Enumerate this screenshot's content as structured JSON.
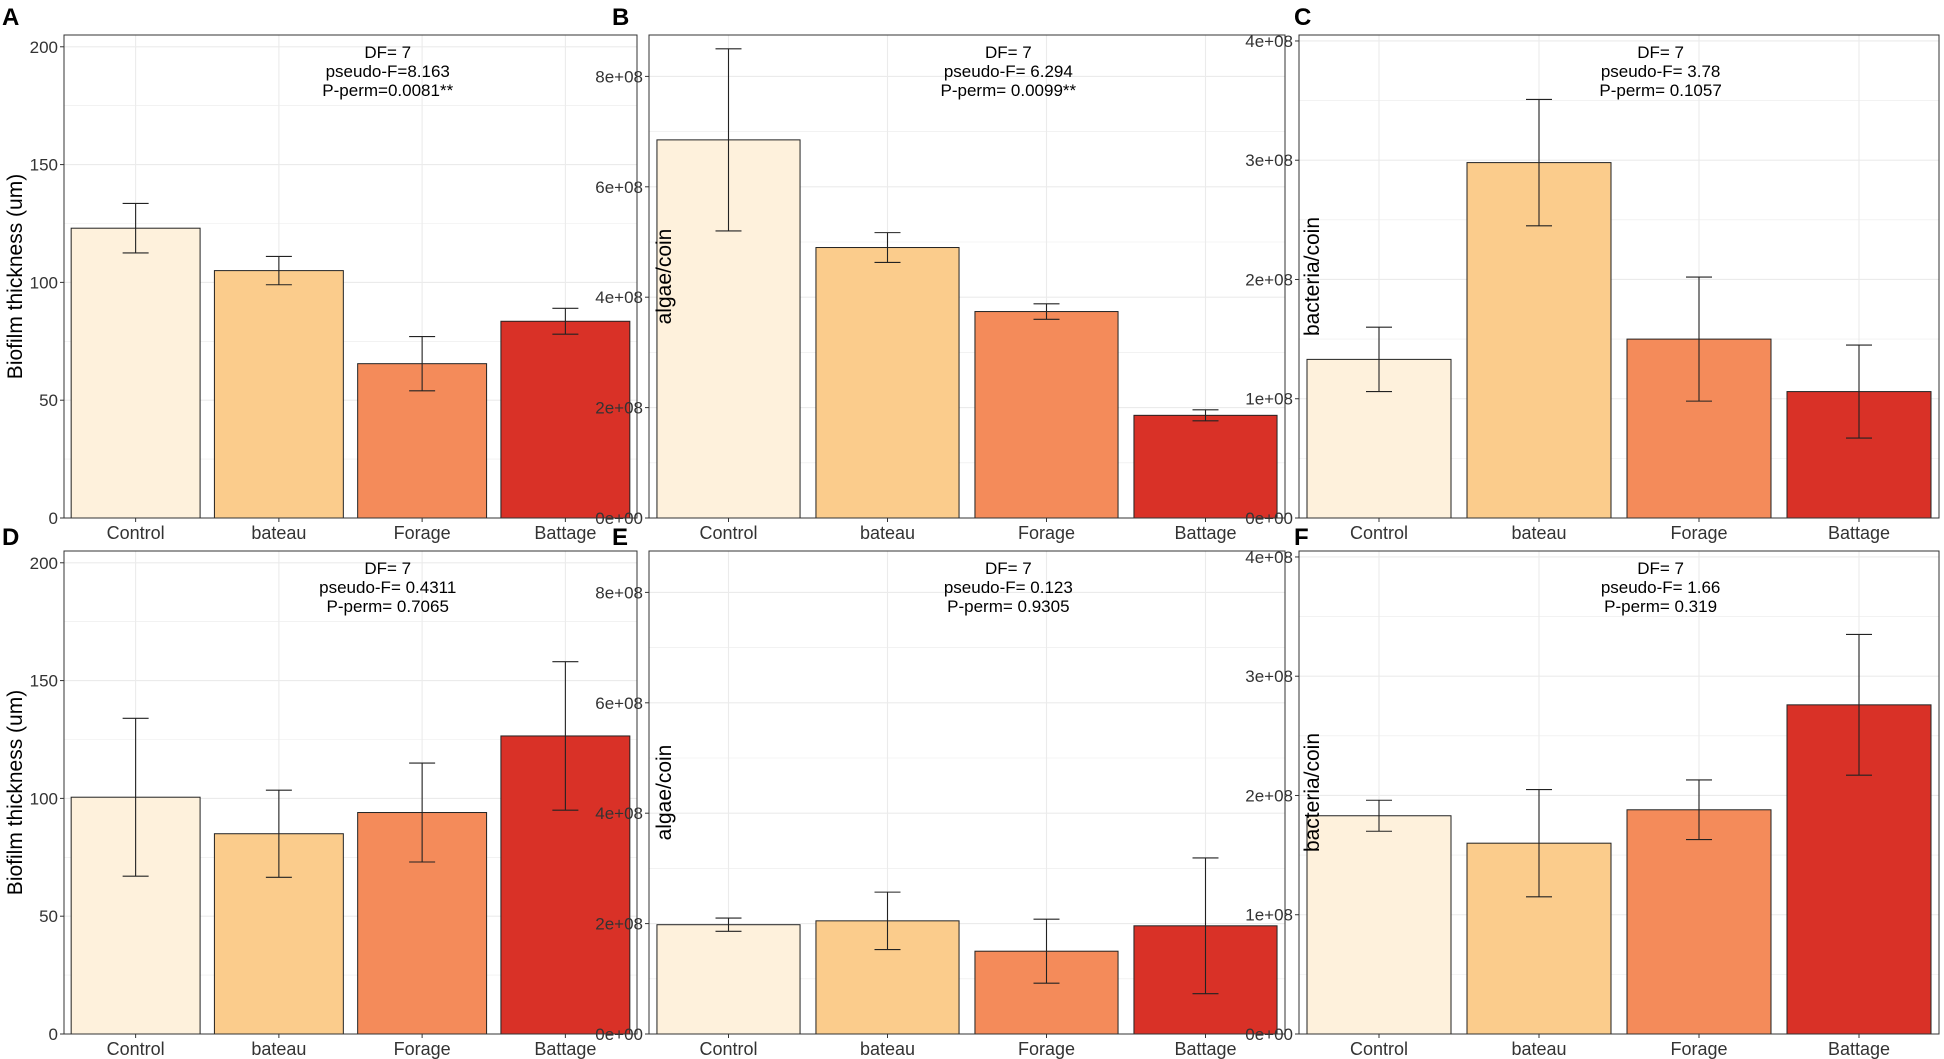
{
  "colors": {
    "control": "#FEF1DC",
    "bateau": "#FBCC8C",
    "forage": "#F48B5A",
    "battage": "#D93127",
    "bar_stroke": "#222222",
    "grid": "#EBEBEB",
    "panel_border": "#333333",
    "text": "#000000",
    "tick_text": "#333333"
  },
  "chart_data": [
    {
      "panel": "A",
      "type": "bar",
      "ylabel": "Biofilm thickness (um)",
      "categories": [
        "Control",
        "bateau",
        "Forage",
        "Battage"
      ],
      "values": [
        123,
        105,
        65.5,
        83.5
      ],
      "errors": [
        10.5,
        6,
        11.5,
        5.5
      ],
      "ylim": [
        0,
        205
      ],
      "yticks": [
        0,
        50,
        100,
        150,
        200
      ],
      "ytick_labels": [
        "0",
        "50",
        "100",
        "150",
        "200"
      ],
      "annotation": [
        "DF= 7",
        "pseudo-F=8.163",
        "P-perm=0.0081**"
      ]
    },
    {
      "panel": "B",
      "type": "bar",
      "ylabel": "algae/coin",
      "categories": [
        "Control",
        "bateau",
        "Forage",
        "Battage"
      ],
      "values": [
        685000000,
        490000000,
        374000000,
        186000000
      ],
      "errors": [
        165000000,
        27000000,
        14000000,
        10000000
      ],
      "ylim": [
        0,
        875000000
      ],
      "yticks": [
        0,
        200000000,
        400000000,
        600000000,
        800000000
      ],
      "ytick_labels": [
        "0e+00",
        "2e+08",
        "4e+08",
        "6e+08",
        "8e+08"
      ],
      "annotation": [
        "DF= 7",
        "pseudo-F= 6.294",
        "P-perm= 0.0099**"
      ]
    },
    {
      "panel": "C",
      "type": "bar",
      "ylabel": "bacteria/coin",
      "categories": [
        "Control",
        "bateau",
        "Forage",
        "Battage"
      ],
      "values": [
        133000000,
        298000000,
        150000000,
        106000000
      ],
      "errors": [
        27000000,
        53000000,
        52000000,
        39000000
      ],
      "ylim": [
        0,
        405000000
      ],
      "yticks": [
        0,
        100000000,
        200000000,
        300000000,
        400000000
      ],
      "ytick_labels": [
        "0e+00",
        "1e+08",
        "2e+08",
        "3e+08",
        "4e+08"
      ],
      "annotation": [
        "DF= 7",
        "pseudo-F= 3.78",
        "P-perm= 0.1057"
      ]
    },
    {
      "panel": "D",
      "type": "bar",
      "ylabel": "Biofilm thickness (um)",
      "categories": [
        "Control",
        "bateau",
        "Forage",
        "Battage"
      ],
      "values": [
        100.5,
        85,
        94,
        126.5
      ],
      "errors": [
        33.5,
        18.5,
        21,
        31.5
      ],
      "ylim": [
        0,
        205
      ],
      "yticks": [
        0,
        50,
        100,
        150,
        200
      ],
      "ytick_labels": [
        "0",
        "50",
        "100",
        "150",
        "200"
      ],
      "annotation": [
        "DF= 7",
        "pseudo-F= 0.4311",
        "P-perm= 0.7065"
      ]
    },
    {
      "panel": "E",
      "type": "bar",
      "ylabel": "algae/coin",
      "categories": [
        "Control",
        "bateau",
        "Forage",
        "Battage"
      ],
      "values": [
        198000000,
        205000000,
        150000000,
        196000000
      ],
      "errors": [
        12000000,
        52000000,
        58000000,
        123000000
      ],
      "ylim": [
        0,
        875000000
      ],
      "yticks": [
        0,
        200000000,
        400000000,
        600000000,
        800000000
      ],
      "ytick_labels": [
        "0e+00",
        "2e+08",
        "4e+08",
        "6e+08",
        "8e+08"
      ],
      "annotation": [
        "DF= 7",
        "pseudo-F= 0.123",
        "P-perm= 0.9305"
      ]
    },
    {
      "panel": "F",
      "type": "bar",
      "ylabel": "bacteria/coin",
      "categories": [
        "Control",
        "bateau",
        "Forage",
        "Battage"
      ],
      "values": [
        183000000,
        160000000,
        188000000,
        276000000
      ],
      "errors": [
        13000000,
        45000000,
        25000000,
        59000000
      ],
      "ylim": [
        0,
        405000000
      ],
      "yticks": [
        0,
        100000000,
        200000000,
        300000000,
        400000000
      ],
      "ytick_labels": [
        "0e+00",
        "1e+08",
        "2e+08",
        "3e+08",
        "4e+08"
      ],
      "annotation": [
        "DF= 7",
        "pseudo-F= 1.66",
        "P-perm= 0.319"
      ]
    }
  ]
}
